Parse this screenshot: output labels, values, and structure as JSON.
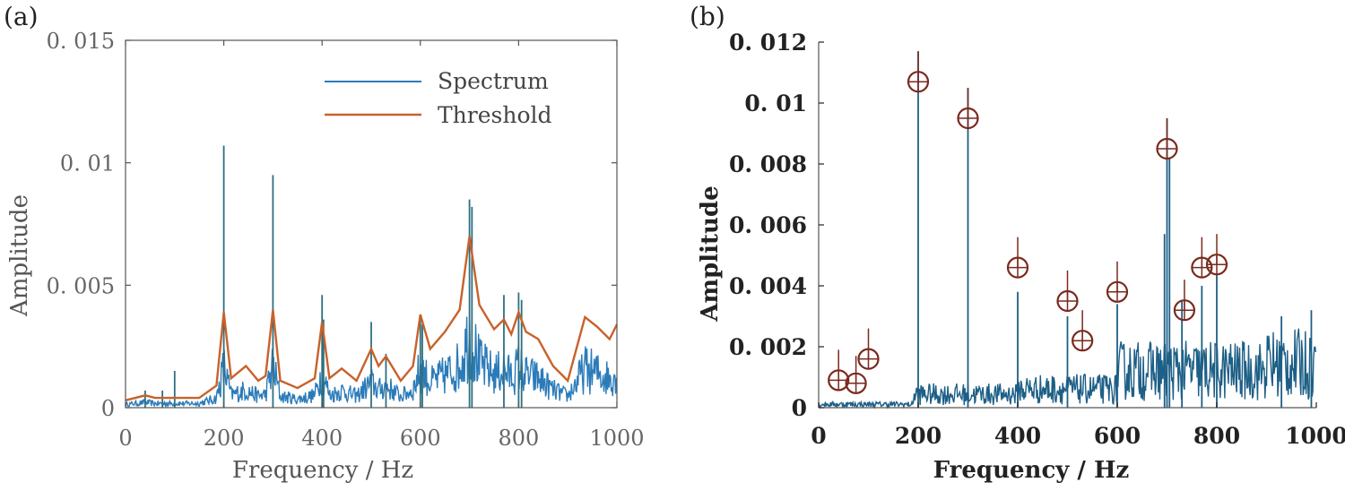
{
  "chart_data": [
    {
      "type": "line",
      "panel_label": "(a)",
      "xlabel": "Frequency / Hz",
      "ylabel": "Amplitude",
      "xlim": [
        0,
        1000
      ],
      "ylim": [
        0,
        0.015
      ],
      "x_ticks": [
        0,
        200,
        400,
        600,
        800,
        1000
      ],
      "y_ticks": [
        {
          "value": 0,
          "label": "0"
        },
        {
          "value": 0.005,
          "label": "0. 005"
        },
        {
          "value": 0.01,
          "label": "0. 01"
        },
        {
          "value": 0.015,
          "label": "0. 015"
        }
      ],
      "legend": [
        "Spectrum",
        "Threshold"
      ],
      "colors": {
        "spectrum": "#2b7bb9",
        "spectrum_peak": "#2f6f80",
        "threshold": "#c8622a",
        "axis": "#555555"
      },
      "spectrum_peaks": [
        {
          "x": 40,
          "y": 0.0007
        },
        {
          "x": 75,
          "y": 0.0007
        },
        {
          "x": 100,
          "y": 0.0015
        },
        {
          "x": 200,
          "y": 0.0107
        },
        {
          "x": 300,
          "y": 0.0095
        },
        {
          "x": 400,
          "y": 0.0046
        },
        {
          "x": 403,
          "y": 0.0036
        },
        {
          "x": 500,
          "y": 0.0035
        },
        {
          "x": 530,
          "y": 0.0022
        },
        {
          "x": 600,
          "y": 0.0038
        },
        {
          "x": 604,
          "y": 0.0034
        },
        {
          "x": 700,
          "y": 0.0085
        },
        {
          "x": 705,
          "y": 0.0082
        },
        {
          "x": 770,
          "y": 0.0046
        },
        {
          "x": 800,
          "y": 0.0047
        },
        {
          "x": 806,
          "y": 0.0044
        }
      ],
      "threshold": [
        [
          0,
          0.0003
        ],
        [
          40,
          0.0005
        ],
        [
          60,
          0.0004
        ],
        [
          100,
          0.0004
        ],
        [
          150,
          0.0004
        ],
        [
          185,
          0.0009
        ],
        [
          200,
          0.0039
        ],
        [
          215,
          0.0012
        ],
        [
          245,
          0.0017
        ],
        [
          270,
          0.0011
        ],
        [
          285,
          0.0013
        ],
        [
          300,
          0.004
        ],
        [
          315,
          0.0011
        ],
        [
          350,
          0.0008
        ],
        [
          385,
          0.0012
        ],
        [
          400,
          0.0035
        ],
        [
          415,
          0.0012
        ],
        [
          440,
          0.0016
        ],
        [
          470,
          0.0011
        ],
        [
          500,
          0.0024
        ],
        [
          515,
          0.0017
        ],
        [
          530,
          0.0021
        ],
        [
          560,
          0.0011
        ],
        [
          585,
          0.0017
        ],
        [
          600,
          0.0038
        ],
        [
          620,
          0.0024
        ],
        [
          650,
          0.0031
        ],
        [
          680,
          0.004
        ],
        [
          700,
          0.007
        ],
        [
          720,
          0.0042
        ],
        [
          750,
          0.0032
        ],
        [
          770,
          0.0036
        ],
        [
          785,
          0.003
        ],
        [
          800,
          0.0039
        ],
        [
          815,
          0.0031
        ],
        [
          840,
          0.0028
        ],
        [
          870,
          0.0017
        ],
        [
          900,
          0.0011
        ],
        [
          935,
          0.0037
        ],
        [
          960,
          0.0033
        ],
        [
          985,
          0.0028
        ],
        [
          1000,
          0.0034
        ]
      ]
    },
    {
      "type": "line",
      "panel_label": "(b)",
      "xlabel": "Frequency / Hz",
      "ylabel": "Amplitude",
      "xlim": [
        0,
        1000
      ],
      "ylim": [
        0,
        0.012
      ],
      "x_ticks": [
        0,
        200,
        400,
        600,
        800,
        1000
      ],
      "y_ticks": [
        {
          "value": 0,
          "label": "0"
        },
        {
          "value": 0.002,
          "label": "0. 002"
        },
        {
          "value": 0.004,
          "label": "0. 004"
        },
        {
          "value": 0.006,
          "label": "0. 006"
        },
        {
          "value": 0.008,
          "label": "0. 008"
        },
        {
          "value": 0.01,
          "label": "0. 01"
        },
        {
          "value": 0.012,
          "label": "0. 012"
        }
      ],
      "colors": {
        "spectrum": "#1d5f86",
        "marker": "#7a2a1e",
        "axis": "#222222"
      },
      "spectrum_peaks": [
        {
          "x": 200,
          "y": 0.0117
        },
        {
          "x": 300,
          "y": 0.0105
        },
        {
          "x": 400,
          "y": 0.0038
        },
        {
          "x": 500,
          "y": 0.003
        },
        {
          "x": 600,
          "y": 0.0034
        },
        {
          "x": 700,
          "y": 0.0095
        },
        {
          "x": 705,
          "y": 0.0082
        },
        {
          "x": 770,
          "y": 0.004
        },
        {
          "x": 800,
          "y": 0.0044
        },
        {
          "x": 695,
          "y": 0.0057
        },
        {
          "x": 730,
          "y": 0.0035
        },
        {
          "x": 930,
          "y": 0.003
        },
        {
          "x": 990,
          "y": 0.0032
        }
      ],
      "detected_peaks": [
        {
          "x": 40,
          "y": 0.0009,
          "tip": 0.0019
        },
        {
          "x": 75,
          "y": 0.0008,
          "tip": 0.0017
        },
        {
          "x": 100,
          "y": 0.0016,
          "tip": 0.0026
        },
        {
          "x": 200,
          "y": 0.0107,
          "tip": 0.0117
        },
        {
          "x": 300,
          "y": 0.0095,
          "tip": 0.0105
        },
        {
          "x": 400,
          "y": 0.0046,
          "tip": 0.0056
        },
        {
          "x": 500,
          "y": 0.0035,
          "tip": 0.0045
        },
        {
          "x": 530,
          "y": 0.0022,
          "tip": 0.0032
        },
        {
          "x": 600,
          "y": 0.0038,
          "tip": 0.0048
        },
        {
          "x": 700,
          "y": 0.0085,
          "tip": 0.0095
        },
        {
          "x": 735,
          "y": 0.0032,
          "tip": 0.0042
        },
        {
          "x": 770,
          "y": 0.0046,
          "tip": 0.0056
        },
        {
          "x": 800,
          "y": 0.0047,
          "tip": 0.0057
        }
      ]
    }
  ]
}
